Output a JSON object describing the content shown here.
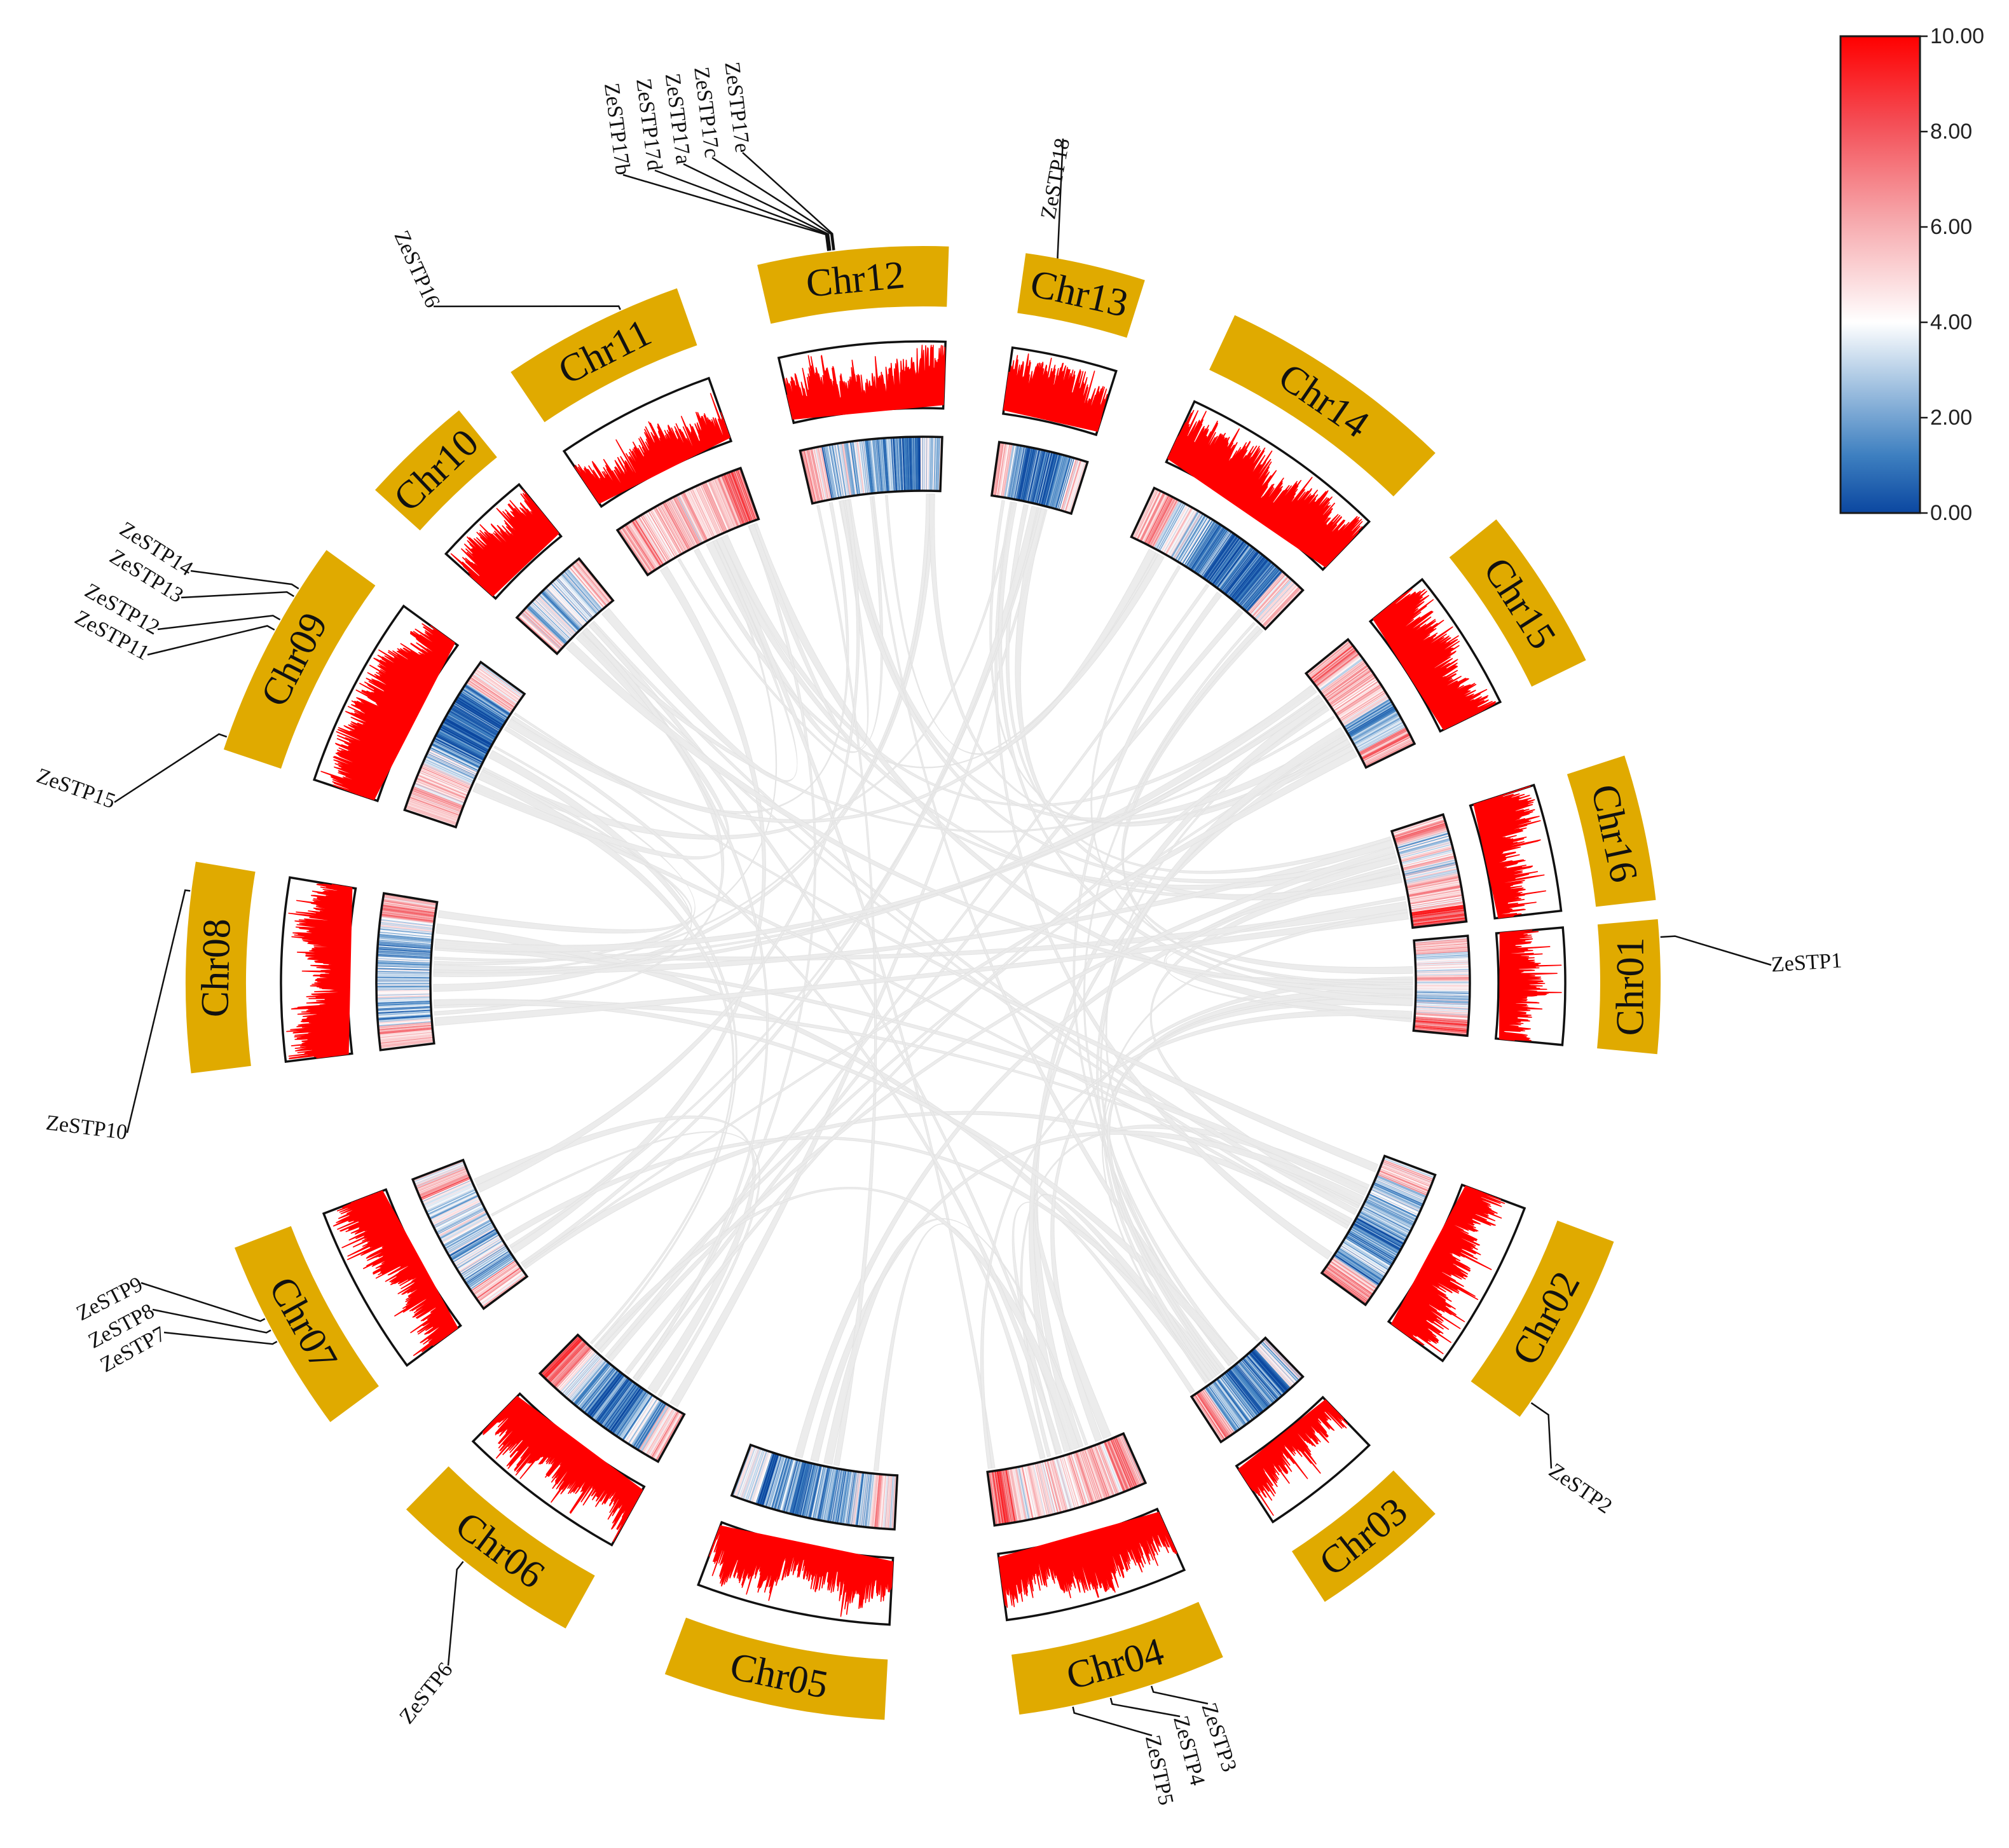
{
  "chart_data": {
    "type": "circos",
    "chromosomes": [
      "Chr01",
      "Chr02",
      "Chr03",
      "Chr04",
      "Chr05",
      "Chr06",
      "Chr07",
      "Chr08",
      "Chr09",
      "Chr10",
      "Chr11",
      "Chr12",
      "Chr13",
      "Chr14",
      "Chr15",
      "Chr16"
    ],
    "genes": [
      {
        "name": "ZeSTP1",
        "chr": "Chr01"
      },
      {
        "name": "ZeSTP2",
        "chr": "Chr02"
      },
      {
        "name": "ZeSTP3",
        "chr": "Chr04"
      },
      {
        "name": "ZeSTP4",
        "chr": "Chr04"
      },
      {
        "name": "ZeSTP5",
        "chr": "Chr04"
      },
      {
        "name": "ZeSTP6",
        "chr": "Chr06"
      },
      {
        "name": "ZeSTP7",
        "chr": "Chr07"
      },
      {
        "name": "ZeSTP8",
        "chr": "Chr07"
      },
      {
        "name": "ZeSTP9",
        "chr": "Chr07"
      },
      {
        "name": "ZeSTP10",
        "chr": "Chr08"
      },
      {
        "name": "ZeSTP11",
        "chr": "Chr09"
      },
      {
        "name": "ZeSTP12",
        "chr": "Chr09"
      },
      {
        "name": "ZeSTP13",
        "chr": "Chr09"
      },
      {
        "name": "ZeSTP14",
        "chr": "Chr09"
      },
      {
        "name": "ZeSTP15",
        "chr": "Chr09"
      },
      {
        "name": "ZeSTP16",
        "chr": "Chr11"
      },
      {
        "name": "ZeSTP17a",
        "chr": "Chr12"
      },
      {
        "name": "ZeSTP17b",
        "chr": "Chr12"
      },
      {
        "name": "ZeSTP17c",
        "chr": "Chr12"
      },
      {
        "name": "ZeSTP17d",
        "chr": "Chr12"
      },
      {
        "name": "ZeSTP17e",
        "chr": "Chr12"
      },
      {
        "name": "ZeSTP18",
        "chr": "Chr13"
      }
    ],
    "legend": {
      "type": "colorbar",
      "ticks": [
        "10.00",
        "8.00",
        "6.00",
        "4.00",
        "2.00",
        "0.00"
      ],
      "range": [
        0,
        10
      ],
      "colors": [
        "#0b47a0",
        "#ffffff",
        "#ff0000"
      ]
    },
    "tracks": [
      "chromosome ideogram",
      "gene density line plot",
      "gene density heatmap",
      "collinearity links"
    ],
    "colors": {
      "ideogram": "#e0aa00",
      "line_track": "#ff0000",
      "links": "#ebebeb"
    }
  }
}
